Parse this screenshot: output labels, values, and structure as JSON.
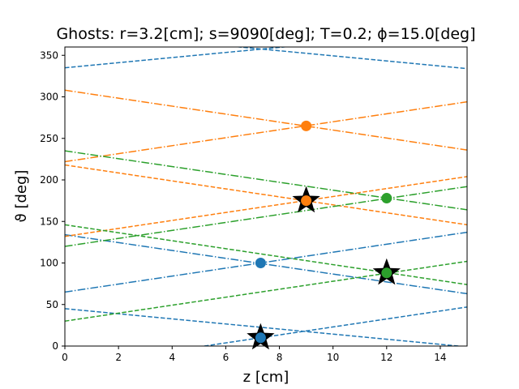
{
  "chart_data": {
    "type": "line",
    "title": "Ghosts: r=3.2[cm]; s=9090[deg]; T=0.2; ϕ=15.0[deg]",
    "xlabel": "z [cm]",
    "ylabel": "ϑ [deg]",
    "xlim": [
      0,
      15
    ],
    "ylim": [
      0,
      360
    ],
    "xticks": [
      "0",
      "2",
      "4",
      "6",
      "8",
      "10",
      "12",
      "14"
    ],
    "yticks": [
      "0",
      "50",
      "100",
      "150",
      "200",
      "250",
      "300",
      "350"
    ],
    "grid": false,
    "legend": "none",
    "colors": {
      "blue": "#1f77b4",
      "orange": "#ff7f0e",
      "green": "#2ca02c"
    },
    "series": [
      {
        "color": "#1f77b4",
        "style": "dashed",
        "x": [
          0,
          15
        ],
        "y": [
          335,
          381
        ]
      },
      {
        "color": "#1f77b4",
        "style": "dashed",
        "x": [
          0,
          15
        ],
        "y": [
          380,
          334
        ]
      },
      {
        "color": "#1f77b4",
        "style": "dashed",
        "x": [
          0,
          15
        ],
        "y": [
          45,
          -1
        ]
      },
      {
        "color": "#1f77b4",
        "style": "dashed",
        "x": [
          0,
          15
        ],
        "y": [
          -25,
          47
        ]
      },
      {
        "color": "#1f77b4",
        "style": "dashdot",
        "x": [
          0,
          15
        ],
        "y": [
          65,
          137
        ]
      },
      {
        "color": "#1f77b4",
        "style": "dashdot",
        "x": [
          0,
          15
        ],
        "y": [
          134,
          63
        ]
      },
      {
        "color": "#ff7f0e",
        "style": "dashdot",
        "x": [
          0,
          15
        ],
        "y": [
          308,
          236
        ]
      },
      {
        "color": "#ff7f0e",
        "style": "dashdot",
        "x": [
          0,
          15
        ],
        "y": [
          222,
          294
        ]
      },
      {
        "color": "#ff7f0e",
        "style": "dashed",
        "x": [
          0,
          15
        ],
        "y": [
          218,
          146
        ]
      },
      {
        "color": "#ff7f0e",
        "style": "dashed",
        "x": [
          0,
          15
        ],
        "y": [
          132,
          204
        ]
      },
      {
        "color": "#2ca02c",
        "style": "dashdot",
        "x": [
          0,
          15
        ],
        "y": [
          235,
          164
        ]
      },
      {
        "color": "#2ca02c",
        "style": "dashdot",
        "x": [
          0,
          15
        ],
        "y": [
          120,
          192
        ]
      },
      {
        "color": "#2ca02c",
        "style": "dashed",
        "x": [
          0,
          15
        ],
        "y": [
          146,
          74
        ]
      },
      {
        "color": "#2ca02c",
        "style": "dashed",
        "x": [
          0,
          15
        ],
        "y": [
          30,
          102
        ]
      }
    ],
    "points": [
      {
        "x": 7.3,
        "y": 100,
        "color": "#1f77b4",
        "star": false
      },
      {
        "x": 7.3,
        "y": 10,
        "color": "#1f77b4",
        "star": true
      },
      {
        "x": 9.0,
        "y": 265,
        "color": "#ff7f0e",
        "star": false
      },
      {
        "x": 9.0,
        "y": 175,
        "color": "#ff7f0e",
        "star": true
      },
      {
        "x": 12.0,
        "y": 178,
        "color": "#2ca02c",
        "star": false
      },
      {
        "x": 12.0,
        "y": 88,
        "color": "#2ca02c",
        "star": true
      }
    ]
  }
}
